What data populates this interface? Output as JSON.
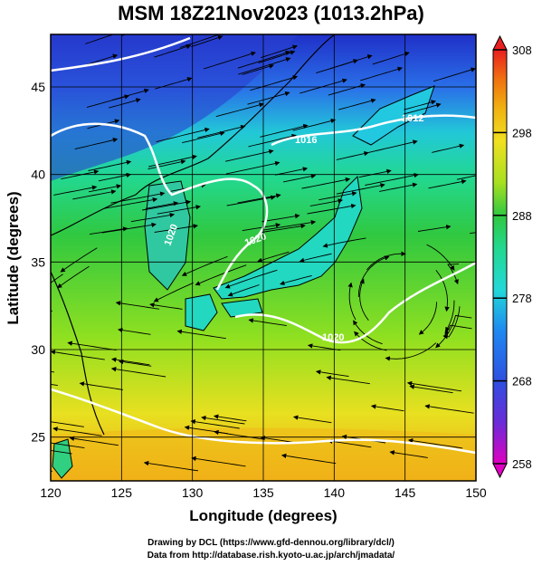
{
  "title": "MSM 18Z21Nov2023 (1013.2hPa)",
  "x_axis": {
    "label": "Longitude (degrees)",
    "ticks": [
      "120",
      "125",
      "130",
      "135",
      "140",
      "145",
      "150"
    ]
  },
  "y_axis": {
    "label": "Latitude  (degrees)",
    "ticks": [
      "25",
      "30",
      "35",
      "40",
      "45"
    ]
  },
  "colorbar": {
    "ticks": [
      "258",
      "268",
      "278",
      "288",
      "298",
      "308"
    ],
    "min": 258,
    "max": 308,
    "colors": [
      "#e000c0",
      "#6a2bd8",
      "#2e4fe0",
      "#1e88f0",
      "#22d8d8",
      "#22d890",
      "#30c840",
      "#a8e020",
      "#f0e020",
      "#f0b010",
      "#f07010",
      "#e82020"
    ]
  },
  "contours": [
    {
      "label": "1020"
    },
    {
      "label": "1016"
    },
    {
      "label": "1012"
    },
    {
      "label": "1020"
    },
    {
      "label": "1020"
    }
  ],
  "credits": {
    "line1": "Drawing by DCL (https://www.gfd-dennou.org/library/dcl/)",
    "line2": "Data from http://database.rish.kyoto-u.ac.jp/arch/jmadata/"
  }
}
